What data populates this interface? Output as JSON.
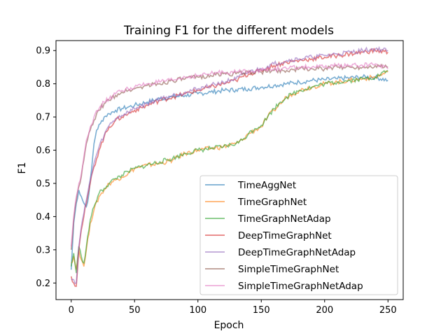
{
  "chart_data": {
    "type": "line",
    "title": "Training F1 for the different models",
    "xlabel": "Epoch",
    "ylabel": "F1",
    "xlim": [
      -12,
      262
    ],
    "ylim": [
      0.15,
      0.93
    ],
    "xticks": [
      0,
      50,
      100,
      150,
      200,
      250
    ],
    "yticks": [
      0.2,
      0.3,
      0.4,
      0.5,
      0.6,
      0.7,
      0.8,
      0.9
    ],
    "grid": false,
    "legend_position": "lower right",
    "line_opacity": 0.6,
    "series": [
      {
        "name": "TimeAggNet",
        "color": "#1f77b4",
        "points": [
          [
            0,
            0.24
          ],
          [
            2,
            0.38
          ],
          [
            4,
            0.44
          ],
          [
            6,
            0.48
          ],
          [
            8,
            0.46
          ],
          [
            10,
            0.44
          ],
          [
            12,
            0.43
          ],
          [
            14,
            0.47
          ],
          [
            16,
            0.54
          ],
          [
            18,
            0.62
          ],
          [
            20,
            0.66
          ],
          [
            23,
            0.68
          ],
          [
            26,
            0.7
          ],
          [
            30,
            0.71
          ],
          [
            35,
            0.72
          ],
          [
            40,
            0.725
          ],
          [
            45,
            0.73
          ],
          [
            50,
            0.735
          ],
          [
            60,
            0.745
          ],
          [
            70,
            0.755
          ],
          [
            80,
            0.76
          ],
          [
            90,
            0.765
          ],
          [
            100,
            0.77
          ],
          [
            110,
            0.775
          ],
          [
            120,
            0.78
          ],
          [
            130,
            0.782
          ],
          [
            140,
            0.785
          ],
          [
            150,
            0.79
          ],
          [
            160,
            0.795
          ],
          [
            170,
            0.8
          ],
          [
            180,
            0.805
          ],
          [
            190,
            0.81
          ],
          [
            200,
            0.812
          ],
          [
            210,
            0.815
          ],
          [
            220,
            0.818
          ],
          [
            230,
            0.82
          ],
          [
            240,
            0.82
          ],
          [
            250,
            0.81
          ]
        ]
      },
      {
        "name": "TimeGraphNet",
        "color": "#ff7f0e",
        "points": [
          [
            0,
            0.26
          ],
          [
            2,
            0.28
          ],
          [
            4,
            0.24
          ],
          [
            6,
            0.3
          ],
          [
            8,
            0.27
          ],
          [
            10,
            0.25
          ],
          [
            12,
            0.3
          ],
          [
            15,
            0.38
          ],
          [
            18,
            0.42
          ],
          [
            22,
            0.46
          ],
          [
            26,
            0.48
          ],
          [
            30,
            0.5
          ],
          [
            35,
            0.51
          ],
          [
            40,
            0.52
          ],
          [
            45,
            0.53
          ],
          [
            50,
            0.545
          ],
          [
            55,
            0.55
          ],
          [
            60,
            0.555
          ],
          [
            70,
            0.56
          ],
          [
            80,
            0.57
          ],
          [
            90,
            0.59
          ],
          [
            100,
            0.6
          ],
          [
            110,
            0.605
          ],
          [
            120,
            0.61
          ],
          [
            130,
            0.62
          ],
          [
            135,
            0.63
          ],
          [
            140,
            0.65
          ],
          [
            145,
            0.66
          ],
          [
            150,
            0.67
          ],
          [
            155,
            0.7
          ],
          [
            160,
            0.72
          ],
          [
            165,
            0.74
          ],
          [
            170,
            0.76
          ],
          [
            175,
            0.77
          ],
          [
            180,
            0.78
          ],
          [
            190,
            0.79
          ],
          [
            200,
            0.8
          ],
          [
            210,
            0.805
          ],
          [
            220,
            0.81
          ],
          [
            230,
            0.815
          ],
          [
            240,
            0.82
          ],
          [
            250,
            0.835
          ]
        ]
      },
      {
        "name": "TimeGraphNetAdap",
        "color": "#2ca02c",
        "points": [
          [
            0,
            0.25
          ],
          [
            2,
            0.29
          ],
          [
            4,
            0.23
          ],
          [
            6,
            0.31
          ],
          [
            8,
            0.28
          ],
          [
            10,
            0.26
          ],
          [
            12,
            0.31
          ],
          [
            15,
            0.39
          ],
          [
            18,
            0.43
          ],
          [
            22,
            0.47
          ],
          [
            26,
            0.485
          ],
          [
            30,
            0.5
          ],
          [
            35,
            0.515
          ],
          [
            40,
            0.525
          ],
          [
            45,
            0.535
          ],
          [
            50,
            0.545
          ],
          [
            55,
            0.55
          ],
          [
            60,
            0.555
          ],
          [
            70,
            0.565
          ],
          [
            80,
            0.575
          ],
          [
            90,
            0.59
          ],
          [
            100,
            0.6
          ],
          [
            110,
            0.605
          ],
          [
            120,
            0.61
          ],
          [
            130,
            0.62
          ],
          [
            135,
            0.63
          ],
          [
            140,
            0.65
          ],
          [
            145,
            0.665
          ],
          [
            150,
            0.675
          ],
          [
            155,
            0.7
          ],
          [
            160,
            0.725
          ],
          [
            165,
            0.745
          ],
          [
            170,
            0.76
          ],
          [
            175,
            0.77
          ],
          [
            180,
            0.78
          ],
          [
            190,
            0.79
          ],
          [
            200,
            0.8
          ],
          [
            210,
            0.805
          ],
          [
            220,
            0.81
          ],
          [
            230,
            0.815
          ],
          [
            240,
            0.82
          ],
          [
            250,
            0.84
          ]
        ]
      },
      {
        "name": "DeepTimeGraphNet",
        "color": "#d62728",
        "points": [
          [
            0,
            0.22
          ],
          [
            2,
            0.2
          ],
          [
            4,
            0.19
          ],
          [
            6,
            0.3
          ],
          [
            8,
            0.36
          ],
          [
            10,
            0.4
          ],
          [
            12,
            0.44
          ],
          [
            15,
            0.5
          ],
          [
            18,
            0.55
          ],
          [
            22,
            0.6
          ],
          [
            26,
            0.64
          ],
          [
            30,
            0.67
          ],
          [
            35,
            0.69
          ],
          [
            40,
            0.7
          ],
          [
            45,
            0.71
          ],
          [
            50,
            0.72
          ],
          [
            60,
            0.735
          ],
          [
            70,
            0.75
          ],
          [
            80,
            0.76
          ],
          [
            90,
            0.77
          ],
          [
            100,
            0.78
          ],
          [
            110,
            0.79
          ],
          [
            120,
            0.8
          ],
          [
            130,
            0.81
          ],
          [
            140,
            0.83
          ],
          [
            150,
            0.84
          ],
          [
            160,
            0.855
          ],
          [
            170,
            0.865
          ],
          [
            180,
            0.87
          ],
          [
            190,
            0.875
          ],
          [
            200,
            0.88
          ],
          [
            210,
            0.885
          ],
          [
            220,
            0.89
          ],
          [
            230,
            0.895
          ],
          [
            240,
            0.9
          ],
          [
            250,
            0.895
          ]
        ]
      },
      {
        "name": "DeepTimeGraphNetAdap",
        "color": "#9467bd",
        "points": [
          [
            0,
            0.21
          ],
          [
            2,
            0.21
          ],
          [
            4,
            0.2
          ],
          [
            6,
            0.31
          ],
          [
            8,
            0.37
          ],
          [
            10,
            0.41
          ],
          [
            12,
            0.45
          ],
          [
            15,
            0.51
          ],
          [
            18,
            0.56
          ],
          [
            22,
            0.61
          ],
          [
            26,
            0.645
          ],
          [
            30,
            0.675
          ],
          [
            35,
            0.695
          ],
          [
            40,
            0.705
          ],
          [
            45,
            0.715
          ],
          [
            50,
            0.725
          ],
          [
            60,
            0.74
          ],
          [
            70,
            0.755
          ],
          [
            80,
            0.765
          ],
          [
            90,
            0.775
          ],
          [
            100,
            0.785
          ],
          [
            110,
            0.795
          ],
          [
            120,
            0.805
          ],
          [
            130,
            0.815
          ],
          [
            140,
            0.835
          ],
          [
            150,
            0.845
          ],
          [
            160,
            0.86
          ],
          [
            170,
            0.87
          ],
          [
            180,
            0.875
          ],
          [
            190,
            0.88
          ],
          [
            200,
            0.885
          ],
          [
            210,
            0.89
          ],
          [
            220,
            0.895
          ],
          [
            230,
            0.9
          ],
          [
            240,
            0.905
          ],
          [
            250,
            0.9
          ]
        ]
      },
      {
        "name": "SimpleTimeGraphNet",
        "color": "#8c564b",
        "points": [
          [
            0,
            0.3
          ],
          [
            2,
            0.39
          ],
          [
            4,
            0.45
          ],
          [
            6,
            0.49
          ],
          [
            8,
            0.52
          ],
          [
            10,
            0.57
          ],
          [
            12,
            0.62
          ],
          [
            15,
            0.66
          ],
          [
            18,
            0.69
          ],
          [
            22,
            0.72
          ],
          [
            26,
            0.74
          ],
          [
            30,
            0.75
          ],
          [
            35,
            0.765
          ],
          [
            40,
            0.775
          ],
          [
            45,
            0.78
          ],
          [
            50,
            0.785
          ],
          [
            60,
            0.795
          ],
          [
            70,
            0.8
          ],
          [
            80,
            0.81
          ],
          [
            90,
            0.815
          ],
          [
            100,
            0.82
          ],
          [
            110,
            0.825
          ],
          [
            120,
            0.83
          ],
          [
            130,
            0.83
          ],
          [
            140,
            0.835
          ],
          [
            150,
            0.835
          ],
          [
            160,
            0.84
          ],
          [
            170,
            0.84
          ],
          [
            180,
            0.845
          ],
          [
            190,
            0.845
          ],
          [
            200,
            0.845
          ],
          [
            210,
            0.85
          ],
          [
            220,
            0.85
          ],
          [
            230,
            0.85
          ],
          [
            240,
            0.855
          ],
          [
            250,
            0.85
          ]
        ]
      },
      {
        "name": "SimpleTimeGraphNetAdap",
        "color": "#e377c2",
        "points": [
          [
            0,
            0.31
          ],
          [
            2,
            0.4
          ],
          [
            4,
            0.46
          ],
          [
            6,
            0.5
          ],
          [
            8,
            0.53
          ],
          [
            10,
            0.58
          ],
          [
            12,
            0.63
          ],
          [
            15,
            0.67
          ],
          [
            18,
            0.7
          ],
          [
            22,
            0.725
          ],
          [
            26,
            0.745
          ],
          [
            30,
            0.755
          ],
          [
            35,
            0.77
          ],
          [
            40,
            0.78
          ],
          [
            45,
            0.785
          ],
          [
            50,
            0.79
          ],
          [
            60,
            0.8
          ],
          [
            70,
            0.805
          ],
          [
            80,
            0.81
          ],
          [
            90,
            0.82
          ],
          [
            100,
            0.825
          ],
          [
            110,
            0.83
          ],
          [
            120,
            0.835
          ],
          [
            130,
            0.835
          ],
          [
            140,
            0.84
          ],
          [
            150,
            0.84
          ],
          [
            160,
            0.845
          ],
          [
            170,
            0.845
          ],
          [
            180,
            0.85
          ],
          [
            190,
            0.85
          ],
          [
            200,
            0.85
          ],
          [
            210,
            0.855
          ],
          [
            220,
            0.855
          ],
          [
            230,
            0.855
          ],
          [
            240,
            0.86
          ],
          [
            250,
            0.845
          ]
        ]
      }
    ]
  }
}
